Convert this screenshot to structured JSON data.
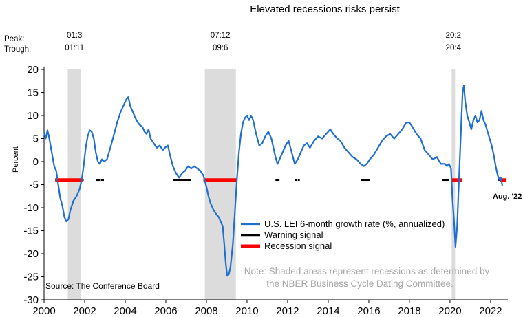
{
  "chart_data": {
    "type": "line",
    "title": "Elevated recessions risks persist",
    "xlabel": "",
    "ylabel": "Percent",
    "xlim": [
      2000,
      2022.85
    ],
    "ylim": [
      -30,
      20
    ],
    "x_ticks": [
      2000,
      2002,
      2004,
      2006,
      2008,
      2010,
      2012,
      2014,
      2016,
      2018,
      2020,
      2022
    ],
    "y_ticks": [
      20,
      15,
      10,
      5,
      0,
      -5,
      -10,
      -15,
      -20,
      -25,
      -30
    ],
    "recessions": [
      {
        "peak": "01:3",
        "trough": "01:11",
        "start": 2001.17,
        "end": 2001.83
      },
      {
        "peak": "07:12",
        "trough": "09:6",
        "start": 2007.92,
        "end": 2009.45
      },
      {
        "peak": "20:2",
        "trough": "20:4",
        "start": 2020.08,
        "end": 2020.25
      }
    ],
    "series": [
      {
        "name": "U.S. LEI 6-month growth rate (%, annualized)",
        "color": "#1f6fd1",
        "points": [
          [
            2000.0,
            6.3
          ],
          [
            2000.08,
            5.0
          ],
          [
            2000.17,
            6.8
          ],
          [
            2000.25,
            5.2
          ],
          [
            2000.4,
            1.5
          ],
          [
            2000.5,
            -1.0
          ],
          [
            2000.6,
            -2.0
          ],
          [
            2000.7,
            -5.0
          ],
          [
            2000.8,
            -8.0
          ],
          [
            2000.9,
            -9.5
          ],
          [
            2001.0,
            -12.0
          ],
          [
            2001.1,
            -13.0
          ],
          [
            2001.2,
            -12.5
          ],
          [
            2001.3,
            -10.5
          ],
          [
            2001.45,
            -8.5
          ],
          [
            2001.6,
            -7.5
          ],
          [
            2001.75,
            -6.0
          ],
          [
            2001.85,
            -4.0
          ],
          [
            2001.95,
            -1.0
          ],
          [
            2002.05,
            3.0
          ],
          [
            2002.15,
            5.5
          ],
          [
            2002.25,
            6.8
          ],
          [
            2002.35,
            6.5
          ],
          [
            2002.45,
            5.0
          ],
          [
            2002.55,
            2.0
          ],
          [
            2002.65,
            0.0
          ],
          [
            2002.75,
            -0.5
          ],
          [
            2002.85,
            0.5
          ],
          [
            2002.95,
            0.0
          ],
          [
            2003.1,
            0.5
          ],
          [
            2003.2,
            2.0
          ],
          [
            2003.3,
            3.5
          ],
          [
            2003.45,
            6.0
          ],
          [
            2003.6,
            8.5
          ],
          [
            2003.75,
            10.5
          ],
          [
            2003.9,
            12.0
          ],
          [
            2004.05,
            13.5
          ],
          [
            2004.15,
            14.0
          ],
          [
            2004.25,
            12.0
          ],
          [
            2004.4,
            10.5
          ],
          [
            2004.55,
            9.0
          ],
          [
            2004.7,
            8.0
          ],
          [
            2004.85,
            7.5
          ],
          [
            2004.95,
            6.5
          ],
          [
            2005.05,
            6.0
          ],
          [
            2005.15,
            7.0
          ],
          [
            2005.25,
            5.0
          ],
          [
            2005.4,
            4.0
          ],
          [
            2005.55,
            3.0
          ],
          [
            2005.7,
            3.5
          ],
          [
            2005.85,
            2.5
          ],
          [
            2005.95,
            3.0
          ],
          [
            2006.1,
            3.5
          ],
          [
            2006.2,
            1.5
          ],
          [
            2006.35,
            -1.0
          ],
          [
            2006.5,
            -2.5
          ],
          [
            2006.65,
            -3.5
          ],
          [
            2006.8,
            -2.5
          ],
          [
            2006.95,
            -2.0
          ],
          [
            2007.1,
            -1.0
          ],
          [
            2007.25,
            -1.5
          ],
          [
            2007.4,
            -1.0
          ],
          [
            2007.55,
            -1.5
          ],
          [
            2007.7,
            -2.0
          ],
          [
            2007.85,
            -3.0
          ],
          [
            2008.0,
            -5.5
          ],
          [
            2008.1,
            -7.5
          ],
          [
            2008.2,
            -9.0
          ],
          [
            2008.35,
            -10.5
          ],
          [
            2008.5,
            -11.5
          ],
          [
            2008.6,
            -12.0
          ],
          [
            2008.7,
            -13.0
          ],
          [
            2008.8,
            -14.0
          ],
          [
            2008.88,
            -18.0
          ],
          [
            2008.95,
            -22.0
          ],
          [
            2009.02,
            -24.8
          ],
          [
            2009.1,
            -24.5
          ],
          [
            2009.18,
            -23.0
          ],
          [
            2009.3,
            -18.0
          ],
          [
            2009.4,
            -11.0
          ],
          [
            2009.5,
            -4.0
          ],
          [
            2009.6,
            2.0
          ],
          [
            2009.7,
            6.0
          ],
          [
            2009.8,
            8.5
          ],
          [
            2009.9,
            9.5
          ],
          [
            2010.0,
            10.0
          ],
          [
            2010.1,
            9.0
          ],
          [
            2010.2,
            10.0
          ],
          [
            2010.3,
            9.0
          ],
          [
            2010.45,
            6.0
          ],
          [
            2010.6,
            3.5
          ],
          [
            2010.75,
            4.0
          ],
          [
            2010.9,
            5.5
          ],
          [
            2011.05,
            6.5
          ],
          [
            2011.2,
            5.0
          ],
          [
            2011.3,
            3.0
          ],
          [
            2011.4,
            1.0
          ],
          [
            2011.5,
            -0.5
          ],
          [
            2011.6,
            0.5
          ],
          [
            2011.75,
            2.0
          ],
          [
            2011.9,
            3.5
          ],
          [
            2012.05,
            4.5
          ],
          [
            2012.2,
            2.0
          ],
          [
            2012.35,
            -0.5
          ],
          [
            2012.5,
            0.5
          ],
          [
            2012.65,
            2.0
          ],
          [
            2012.8,
            3.5
          ],
          [
            2012.95,
            4.0
          ],
          [
            2013.1,
            3.0
          ],
          [
            2013.3,
            4.5
          ],
          [
            2013.5,
            5.5
          ],
          [
            2013.7,
            5.0
          ],
          [
            2013.9,
            6.0
          ],
          [
            2014.1,
            7.0
          ],
          [
            2014.25,
            6.0
          ],
          [
            2014.45,
            5.0
          ],
          [
            2014.6,
            4.5
          ],
          [
            2014.8,
            3.0
          ],
          [
            2015.0,
            2.0
          ],
          [
            2015.2,
            1.0
          ],
          [
            2015.4,
            0.5
          ],
          [
            2015.6,
            -0.5
          ],
          [
            2015.75,
            -1.0
          ],
          [
            2015.9,
            -0.5
          ],
          [
            2016.05,
            0.5
          ],
          [
            2016.25,
            1.5
          ],
          [
            2016.45,
            3.0
          ],
          [
            2016.65,
            4.5
          ],
          [
            2016.85,
            5.5
          ],
          [
            2017.05,
            6.0
          ],
          [
            2017.25,
            5.0
          ],
          [
            2017.45,
            6.0
          ],
          [
            2017.65,
            7.0
          ],
          [
            2017.85,
            8.5
          ],
          [
            2018.0,
            8.5
          ],
          [
            2018.15,
            7.5
          ],
          [
            2018.35,
            6.0
          ],
          [
            2018.55,
            5.0
          ],
          [
            2018.75,
            2.5
          ],
          [
            2018.95,
            1.5
          ],
          [
            2019.15,
            0.5
          ],
          [
            2019.35,
            1.0
          ],
          [
            2019.55,
            -0.5
          ],
          [
            2019.75,
            -0.5
          ],
          [
            2019.85,
            -1.0
          ],
          [
            2019.95,
            -0.5
          ],
          [
            2020.05,
            -1.5
          ],
          [
            2020.12,
            -8.0
          ],
          [
            2020.2,
            -13.0
          ],
          [
            2020.27,
            -18.5
          ],
          [
            2020.35,
            -14.0
          ],
          [
            2020.45,
            -3.0
          ],
          [
            2020.55,
            8.0
          ],
          [
            2020.62,
            15.0
          ],
          [
            2020.68,
            16.5
          ],
          [
            2020.75,
            13.0
          ],
          [
            2020.85,
            10.0
          ],
          [
            2020.95,
            8.5
          ],
          [
            2021.05,
            7.0
          ],
          [
            2021.15,
            9.0
          ],
          [
            2021.25,
            10.0
          ],
          [
            2021.35,
            8.5
          ],
          [
            2021.45,
            9.0
          ],
          [
            2021.55,
            11.0
          ],
          [
            2021.65,
            9.0
          ],
          [
            2021.75,
            8.0
          ],
          [
            2021.85,
            6.5
          ],
          [
            2021.95,
            5.0
          ],
          [
            2022.05,
            3.5
          ],
          [
            2022.15,
            1.5
          ],
          [
            2022.25,
            -1.0
          ],
          [
            2022.35,
            -3.0
          ],
          [
            2022.45,
            -4.0
          ],
          [
            2022.5,
            -3.5
          ],
          [
            2022.58,
            -5.2
          ]
        ]
      },
      {
        "name": "Warning signal",
        "color": "#000000",
        "level": -4,
        "segments": [
          [
            2000.55,
            2001.95
          ],
          [
            2002.55,
            2002.75
          ],
          [
            2002.8,
            2002.95
          ],
          [
            2006.35,
            2007.25
          ],
          [
            2011.4,
            2011.6
          ],
          [
            2012.35,
            2012.45
          ],
          [
            2012.5,
            2012.6
          ],
          [
            2015.6,
            2016.05
          ],
          [
            2019.6,
            2019.95
          ],
          [
            2022.38,
            2022.75
          ]
        ]
      },
      {
        "name": "Recession signal",
        "color": "#ff0000",
        "level": -4,
        "segments": [
          [
            2000.55,
            2001.9
          ],
          [
            2007.85,
            2009.5
          ],
          [
            2020.1,
            2020.6
          ],
          [
            2022.45,
            2022.75
          ]
        ]
      }
    ],
    "annotations": {
      "peak_label": "Peak:",
      "trough_label": "Trough:",
      "latest": "Aug. '22",
      "source": "Source: The Conference Board",
      "note_line1": "Note: Shaded areas represent recessions as determined by",
      "note_line2": "the NBER Business Cycle Dating Committee."
    },
    "colors": {
      "shade": "#dcdcdc",
      "axis": "#000000"
    }
  }
}
